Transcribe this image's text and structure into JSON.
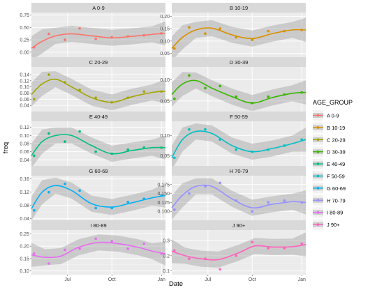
{
  "chart_data": {
    "type": "line",
    "xlabel": "Date",
    "ylabel": "freq",
    "x_ticks": [
      "Jul",
      "Oct",
      "Jan"
    ],
    "legend": {
      "title": "AGE_GROUP",
      "position": "right"
    },
    "grid": true,
    "panels": [
      {
        "name": "A 0-9",
        "color": "#F8766D",
        "ylim": [
          -0.1,
          0.8
        ],
        "yticks": [
          0.0,
          0.1,
          0.2,
          0.3,
          0.4,
          0.5,
          0.6,
          0.7
        ],
        "tick_labels": [
          "0.00",
          "0.25",
          "0.50",
          "0.75"
        ],
        "tick_values": [
          0.0,
          0.25,
          0.5,
          0.75
        ],
        "points": [
          [
            0.02,
            0.1
          ],
          [
            0.13,
            0.37
          ],
          [
            0.25,
            0.25
          ],
          [
            0.36,
            0.48
          ],
          [
            0.48,
            0.27
          ],
          [
            0.6,
            0.3
          ],
          [
            0.72,
            0.32
          ],
          [
            0.84,
            0.34
          ],
          [
            0.97,
            0.38
          ]
        ],
        "smooth": [
          [
            0.0,
            0.08
          ],
          [
            0.08,
            0.22
          ],
          [
            0.18,
            0.33
          ],
          [
            0.3,
            0.37
          ],
          [
            0.45,
            0.33
          ],
          [
            0.6,
            0.29
          ],
          [
            0.75,
            0.32
          ],
          [
            0.9,
            0.36
          ],
          [
            1.0,
            0.38
          ]
        ]
      },
      {
        "name": "B 10-19",
        "color": "#D89000",
        "ylim": [
          0.035,
          0.215
        ],
        "yticks": [],
        "tick_labels": [
          "0.05",
          "0.10",
          "0.15",
          "0.20"
        ],
        "tick_values": [
          0.05,
          0.1,
          0.15,
          0.2
        ],
        "points": [
          [
            0.02,
            0.07
          ],
          [
            0.13,
            0.155
          ],
          [
            0.25,
            0.13
          ],
          [
            0.36,
            0.15
          ],
          [
            0.48,
            0.115
          ],
          [
            0.6,
            0.105
          ],
          [
            0.72,
            0.14
          ],
          [
            0.84,
            0.14
          ],
          [
            0.97,
            0.145
          ]
        ],
        "smooth": [
          [
            0.0,
            0.07
          ],
          [
            0.08,
            0.115
          ],
          [
            0.18,
            0.145
          ],
          [
            0.3,
            0.152
          ],
          [
            0.45,
            0.125
          ],
          [
            0.6,
            0.11
          ],
          [
            0.75,
            0.13
          ],
          [
            0.9,
            0.145
          ],
          [
            1.0,
            0.145
          ]
        ]
      },
      {
        "name": "C 20-29",
        "color": "#A3A500",
        "ylim": [
          0.02,
          0.165
        ],
        "yticks": [],
        "tick_labels": [
          "0.04",
          "0.06",
          "0.08",
          "0.10",
          "0.12",
          "0.14"
        ],
        "tick_values": [
          0.04,
          0.06,
          0.08,
          0.1,
          0.12,
          0.14
        ],
        "points": [
          [
            0.02,
            0.06
          ],
          [
            0.13,
            0.14
          ],
          [
            0.25,
            0.115
          ],
          [
            0.36,
            0.09
          ],
          [
            0.48,
            0.065
          ],
          [
            0.6,
            0.05
          ],
          [
            0.72,
            0.065
          ],
          [
            0.84,
            0.085
          ],
          [
            0.97,
            0.085
          ]
        ],
        "smooth": [
          [
            0.0,
            0.075
          ],
          [
            0.08,
            0.11
          ],
          [
            0.18,
            0.125
          ],
          [
            0.3,
            0.1
          ],
          [
            0.45,
            0.065
          ],
          [
            0.6,
            0.05
          ],
          [
            0.75,
            0.068
          ],
          [
            0.9,
            0.082
          ],
          [
            1.0,
            0.086
          ]
        ]
      },
      {
        "name": "D 30-39",
        "color": "#39B600",
        "ylim": [
          0.025,
          0.13
        ],
        "yticks": [],
        "tick_labels": [
          "0.05",
          "0.10"
        ],
        "tick_values": [
          0.05,
          0.1
        ],
        "points": [
          [
            0.02,
            0.055
          ],
          [
            0.13,
            0.11
          ],
          [
            0.25,
            0.08
          ],
          [
            0.36,
            0.085
          ],
          [
            0.48,
            0.06
          ],
          [
            0.6,
            0.045
          ],
          [
            0.72,
            0.06
          ],
          [
            0.84,
            0.065
          ],
          [
            0.97,
            0.07
          ]
        ],
        "smooth": [
          [
            0.0,
            0.065
          ],
          [
            0.08,
            0.09
          ],
          [
            0.18,
            0.098
          ],
          [
            0.3,
            0.08
          ],
          [
            0.45,
            0.06
          ],
          [
            0.6,
            0.045
          ],
          [
            0.75,
            0.058
          ],
          [
            0.9,
            0.068
          ],
          [
            1.0,
            0.07
          ]
        ]
      },
      {
        "name": "E 40-49",
        "color": "#00BF7D",
        "ylim": [
          0.025,
          0.135
        ],
        "yticks": [],
        "tick_labels": [
          "0.04",
          "0.06",
          "0.08",
          "0.10",
          "0.12"
        ],
        "tick_values": [
          0.04,
          0.06,
          0.08,
          0.1,
          0.12
        ],
        "points": [
          [
            0.02,
            0.05
          ],
          [
            0.13,
            0.105
          ],
          [
            0.25,
            0.085
          ],
          [
            0.36,
            0.11
          ],
          [
            0.48,
            0.06
          ],
          [
            0.6,
            0.055
          ],
          [
            0.72,
            0.065
          ],
          [
            0.84,
            0.07
          ],
          [
            0.97,
            0.07
          ]
        ],
        "smooth": [
          [
            0.0,
            0.05
          ],
          [
            0.08,
            0.085
          ],
          [
            0.18,
            0.1
          ],
          [
            0.3,
            0.1
          ],
          [
            0.45,
            0.075
          ],
          [
            0.6,
            0.055
          ],
          [
            0.75,
            0.063
          ],
          [
            0.9,
            0.07
          ],
          [
            1.0,
            0.07
          ]
        ]
      },
      {
        "name": "F 50-59",
        "color": "#00BFC4",
        "ylim": [
          0.025,
          0.135
        ],
        "yticks": [],
        "tick_labels": [
          "0.05",
          "0.10"
        ],
        "tick_values": [
          0.05,
          0.1
        ],
        "points": [
          [
            0.02,
            0.045
          ],
          [
            0.13,
            0.115
          ],
          [
            0.25,
            0.115
          ],
          [
            0.36,
            0.09
          ],
          [
            0.48,
            0.065
          ],
          [
            0.6,
            0.06
          ],
          [
            0.72,
            0.065
          ],
          [
            0.84,
            0.075
          ],
          [
            0.97,
            0.09
          ]
        ],
        "smooth": [
          [
            0.0,
            0.045
          ],
          [
            0.08,
            0.09
          ],
          [
            0.18,
            0.11
          ],
          [
            0.3,
            0.105
          ],
          [
            0.45,
            0.075
          ],
          [
            0.6,
            0.06
          ],
          [
            0.75,
            0.068
          ],
          [
            0.9,
            0.08
          ],
          [
            1.0,
            0.09
          ]
        ]
      },
      {
        "name": "G 60-69",
        "color": "#00B0F6",
        "ylim": [
          0.035,
          0.17
        ],
        "yticks": [],
        "tick_labels": [
          "0.04",
          "0.08",
          "0.12",
          "0.16"
        ],
        "tick_values": [
          0.04,
          0.08,
          0.12,
          0.16
        ],
        "points": [
          [
            0.02,
            0.065
          ],
          [
            0.13,
            0.12
          ],
          [
            0.25,
            0.145
          ],
          [
            0.36,
            0.125
          ],
          [
            0.48,
            0.072
          ],
          [
            0.6,
            0.072
          ],
          [
            0.72,
            0.09
          ],
          [
            0.84,
            0.1
          ],
          [
            0.97,
            0.11
          ]
        ],
        "smooth": [
          [
            0.0,
            0.07
          ],
          [
            0.08,
            0.12
          ],
          [
            0.18,
            0.14
          ],
          [
            0.3,
            0.125
          ],
          [
            0.45,
            0.085
          ],
          [
            0.6,
            0.075
          ],
          [
            0.75,
            0.088
          ],
          [
            0.9,
            0.103
          ],
          [
            1.0,
            0.11
          ]
        ]
      },
      {
        "name": "H 70-79",
        "color": "#9590FF",
        "ylim": [
          0.075,
          0.2
        ],
        "yticks": [],
        "tick_labels": [
          "0.100",
          "0.125",
          "0.150",
          "0.175"
        ],
        "tick_values": [
          0.1,
          0.125,
          0.15,
          0.175
        ],
        "points": [
          [
            0.02,
            0.105
          ],
          [
            0.13,
            0.15
          ],
          [
            0.25,
            0.17
          ],
          [
            0.36,
            0.18
          ],
          [
            0.48,
            0.13
          ],
          [
            0.6,
            0.1
          ],
          [
            0.72,
            0.125
          ],
          [
            0.84,
            0.13
          ],
          [
            0.97,
            0.125
          ]
        ],
        "smooth": [
          [
            0.0,
            0.11
          ],
          [
            0.08,
            0.145
          ],
          [
            0.18,
            0.17
          ],
          [
            0.3,
            0.17
          ],
          [
            0.45,
            0.135
          ],
          [
            0.6,
            0.11
          ],
          [
            0.75,
            0.12
          ],
          [
            0.9,
            0.127
          ],
          [
            1.0,
            0.125
          ]
        ]
      },
      {
        "name": "I 80-89",
        "color": "#E76BF3",
        "ylim": [
          0.085,
          0.265
        ],
        "yticks": [],
        "tick_labels": [
          "0.10",
          "0.15",
          "0.20",
          "0.25"
        ],
        "tick_values": [
          0.1,
          0.15,
          0.2,
          0.25
        ],
        "points": [
          [
            0.02,
            0.17
          ],
          [
            0.13,
            0.13
          ],
          [
            0.25,
            0.185
          ],
          [
            0.36,
            0.19
          ],
          [
            0.48,
            0.23
          ],
          [
            0.6,
            0.22
          ],
          [
            0.72,
            0.19
          ],
          [
            0.84,
            0.21
          ],
          [
            0.97,
            0.17
          ]
        ],
        "smooth": [
          [
            0.0,
            0.165
          ],
          [
            0.1,
            0.155
          ],
          [
            0.22,
            0.16
          ],
          [
            0.35,
            0.195
          ],
          [
            0.5,
            0.215
          ],
          [
            0.65,
            0.21
          ],
          [
            0.8,
            0.195
          ],
          [
            0.9,
            0.18
          ],
          [
            1.0,
            0.17
          ]
        ]
      },
      {
        "name": "J 90+",
        "color": "#FF62BC",
        "ylim": [
          0.075,
          0.37
        ],
        "yticks": [],
        "tick_labels": [
          "0.1",
          "0.2",
          "0.3"
        ],
        "tick_values": [
          0.1,
          0.2,
          0.3
        ],
        "points": [
          [
            0.02,
            0.235
          ],
          [
            0.13,
            0.18
          ],
          [
            0.25,
            0.18
          ],
          [
            0.36,
            0.11
          ],
          [
            0.48,
            0.2
          ],
          [
            0.6,
            0.29
          ],
          [
            0.72,
            0.25
          ],
          [
            0.84,
            0.25
          ],
          [
            0.97,
            0.28
          ]
        ],
        "smooth": [
          [
            0.0,
            0.23
          ],
          [
            0.1,
            0.2
          ],
          [
            0.22,
            0.18
          ],
          [
            0.35,
            0.175
          ],
          [
            0.5,
            0.22
          ],
          [
            0.62,
            0.265
          ],
          [
            0.75,
            0.258
          ],
          [
            0.9,
            0.26
          ],
          [
            1.0,
            0.275
          ]
        ]
      }
    ]
  }
}
